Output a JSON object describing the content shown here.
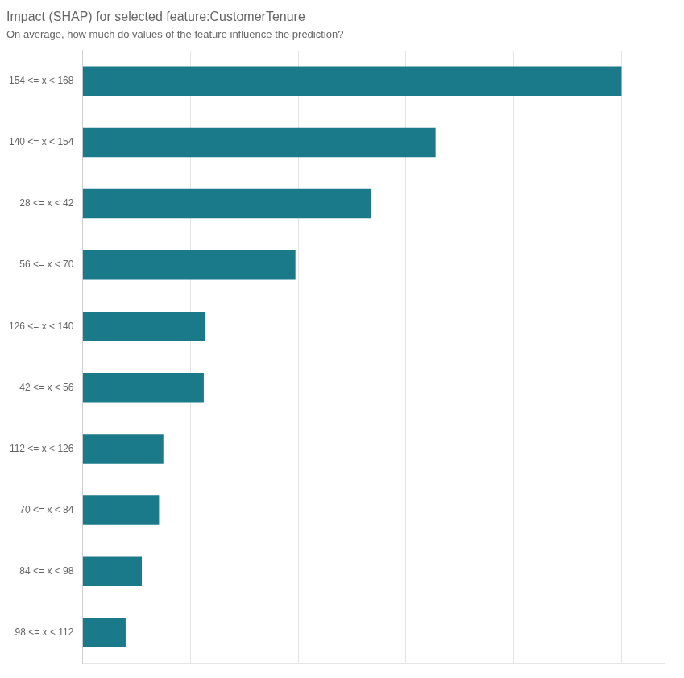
{
  "chart_data": {
    "type": "bar",
    "title": "Impact (SHAP) for selected feature:CustomerTenure",
    "subtitle": "On average, how much do values of the feature influence the prediction?",
    "orientation": "horizontal",
    "categories": [
      "154 <= x < 168",
      "140 <= x < 154",
      "28 <= x < 42",
      "56 <= x < 70",
      "126 <= x < 140",
      "42 <= x < 56",
      "112 <= x < 126",
      "70 <= x < 84",
      "84 <= x < 98",
      "98 <= x < 112"
    ],
    "values": [
      1.0,
      0.655,
      0.535,
      0.395,
      0.228,
      0.225,
      0.15,
      0.142,
      0.11,
      0.08
    ],
    "color": "#1a7a8a",
    "xlim": [
      0,
      1.08
    ],
    "xticks": [
      0,
      0.2,
      0.4,
      0.6,
      0.8,
      1.0
    ],
    "grid": true,
    "tick_labels": "y"
  }
}
